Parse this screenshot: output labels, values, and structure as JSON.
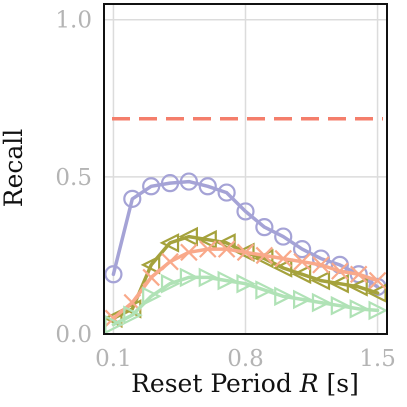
{
  "chart_data": {
    "type": "line",
    "xlabel": {
      "prefix": "Reset Period ",
      "var": "R",
      "suffix": " [s]"
    },
    "ylabel": "Recall",
    "xlim": [
      0.05,
      1.55
    ],
    "ylim": [
      0.0,
      1.05
    ],
    "x_ticks": [
      0.1,
      0.8,
      1.5
    ],
    "x_tick_labels": [
      "0.1",
      "0.8",
      "1.5"
    ],
    "y_ticks": [
      0.0,
      0.5,
      1.0
    ],
    "y_tick_labels": [
      "0.0",
      "0.5",
      "1.0"
    ],
    "grid": true,
    "reference_line": {
      "y": 0.685,
      "color": "#f47e6b",
      "style": "dashed"
    },
    "series": [
      {
        "marker": "circle",
        "color": "#a5a3d6",
        "x": [
          0.1,
          0.2,
          0.3,
          0.4,
          0.5,
          0.6,
          0.7,
          0.8,
          0.9,
          1.0,
          1.1,
          1.2,
          1.3,
          1.4,
          1.5
        ],
        "y": [
          0.19,
          0.43,
          0.47,
          0.48,
          0.485,
          0.47,
          0.45,
          0.39,
          0.34,
          0.31,
          0.27,
          0.24,
          0.22,
          0.19,
          0.15
        ]
      },
      {
        "marker": "triangle-left",
        "color": "#a5a23c",
        "x": [
          0.1,
          0.2,
          0.3,
          0.4,
          0.5,
          0.6,
          0.7,
          0.8,
          0.9,
          1.0,
          1.1,
          1.2,
          1.3,
          1.4,
          1.5
        ],
        "y": [
          0.05,
          0.08,
          0.22,
          0.29,
          0.31,
          0.3,
          0.29,
          0.26,
          0.24,
          0.21,
          0.19,
          0.17,
          0.16,
          0.15,
          0.13
        ]
      },
      {
        "marker": "cross",
        "color": "#f9a98a",
        "x": [
          0.1,
          0.2,
          0.3,
          0.4,
          0.5,
          0.6,
          0.7,
          0.8,
          0.9,
          1.0,
          1.1,
          1.2,
          1.3,
          1.4,
          1.5
        ],
        "y": [
          0.05,
          0.1,
          0.18,
          0.23,
          0.26,
          0.27,
          0.27,
          0.26,
          0.25,
          0.24,
          0.23,
          0.22,
          0.2,
          0.19,
          0.17
        ]
      },
      {
        "marker": "triangle-right",
        "color": "#b0e2b6",
        "x": [
          0.1,
          0.2,
          0.3,
          0.4,
          0.5,
          0.6,
          0.7,
          0.8,
          0.9,
          1.0,
          1.1,
          1.2,
          1.3,
          1.4,
          1.5
        ],
        "y": [
          0.03,
          0.06,
          0.12,
          0.16,
          0.18,
          0.18,
          0.17,
          0.16,
          0.14,
          0.12,
          0.11,
          0.1,
          0.09,
          0.08,
          0.075
        ]
      }
    ]
  }
}
